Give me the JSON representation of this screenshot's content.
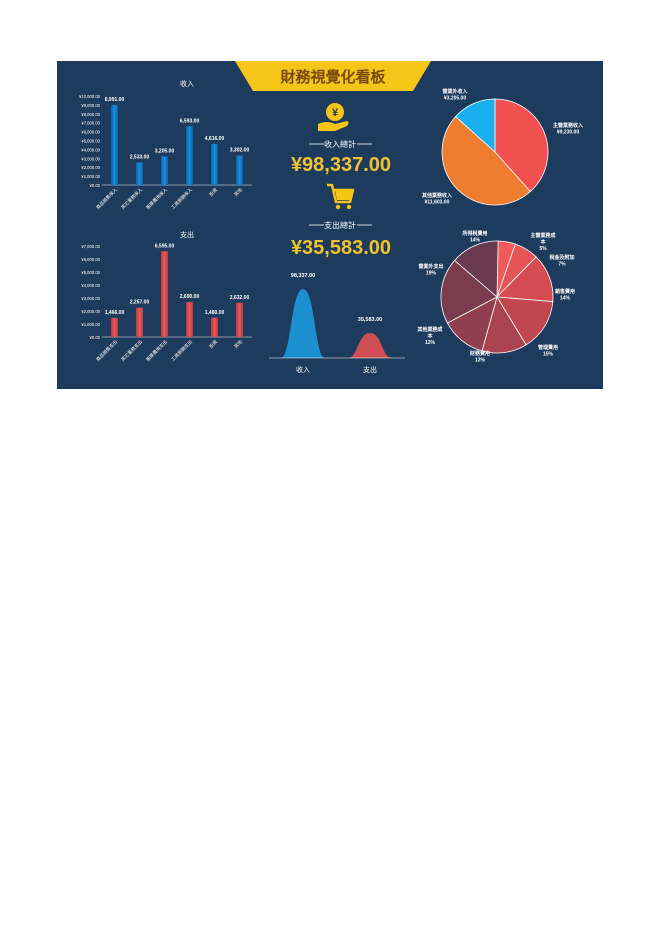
{
  "dashboard": {
    "title": "財務視覺化看板",
    "income_total_label": "收入總計",
    "income_total": "¥98,337.00",
    "expense_total_label": "支出總計",
    "expense_total": "¥35,583.00",
    "income_icon": "yen-hand-icon",
    "expense_icon": "shopping-cart-icon"
  },
  "colors": {
    "background": "#1d3b5c",
    "title_gold": "#f5c518",
    "total_gold": "#f2c22c",
    "income_bar": "#1a8fe0",
    "expense_bar": "#e8585c"
  },
  "chart_data": [
    {
      "id": "income-bar",
      "type": "bar",
      "title": "收入",
      "categories": [
        "商品銷售收入",
        "其它業務收入",
        "服務費用收入",
        "工資薪酬收入",
        "投資",
        "其他"
      ],
      "values": [
        8991,
        2533,
        3205,
        6593,
        4616,
        3302
      ],
      "value_labels": [
        "8,991.00",
        "2,533.00",
        "3,205.00",
        "6,593.00",
        "4,616.00",
        "3,302.00"
      ],
      "y_ticks": [
        "¥0.00",
        "¥1,000.00",
        "¥2,000.00",
        "¥3,000.00",
        "¥4,000.00",
        "¥5,000.00",
        "¥6,000.00",
        "¥7,000.00",
        "¥8,000.00",
        "¥9,000.00",
        "¥10,000.00"
      ],
      "ylim": [
        0,
        10000
      ]
    },
    {
      "id": "expense-bar",
      "type": "bar",
      "title": "支出",
      "categories": [
        "商品銷售支出",
        "其它業務支出",
        "服務費用支出",
        "工資薪酬支出",
        "投資",
        "其他"
      ],
      "values": [
        1466,
        2257,
        6595,
        2690,
        1480,
        2632
      ],
      "value_labels": [
        "1,466.00",
        "2,257.00",
        "6,595.00",
        "2,690.00",
        "1,480.00",
        "2,632.00"
      ],
      "y_ticks": [
        "¥0.00",
        "¥1,000.00",
        "¥2,000.00",
        "¥3,000.00",
        "¥4,000.00",
        "¥5,000.00",
        "¥6,000.00",
        "¥7,000.00"
      ],
      "ylim": [
        0,
        7000
      ]
    },
    {
      "id": "income-pie",
      "type": "pie",
      "slices": [
        {
          "label": "主營業務收入",
          "value": 9230,
          "value_label": "¥9,230.00",
          "color": "#f05050"
        },
        {
          "label": "其他業務收入",
          "value": 11603,
          "value_label": "¥11,603.00",
          "color": "#ef7d30"
        },
        {
          "label": "營業外收入",
          "value": 3205,
          "value_label": "¥3,205.00",
          "color": "#1ab0f0"
        }
      ]
    },
    {
      "id": "total-compare",
      "type": "area",
      "categories": [
        "收入",
        "支出"
      ],
      "values": [
        98337,
        35583
      ],
      "value_labels": [
        "98,337.00",
        "35,583.00"
      ],
      "colors": [
        "#1b8fd0",
        "#cf4f55"
      ]
    },
    {
      "id": "expense-pie",
      "type": "pie",
      "slices": [
        {
          "label": "主營業務成本",
          "percent_label": "5%",
          "value": 5,
          "color": "#f05a5a"
        },
        {
          "label": "稅金及附加",
          "percent_label": "7%",
          "value": 7,
          "color": "#e65457"
        },
        {
          "label": "銷售費用",
          "percent_label": "14%",
          "value": 14,
          "color": "#d44b52"
        },
        {
          "label": "管理費用",
          "percent_label": "15%",
          "value": 15,
          "color": "#c04650"
        },
        {
          "label": "財務費用",
          "percent_label": "13%",
          "value": 13,
          "color": "#a8434f"
        },
        {
          "label": "其他業務成本",
          "percent_label": "13%",
          "value": 13,
          "color": "#8f3f4e"
        },
        {
          "label": "營業外支出",
          "percent_label": "19%",
          "value": 19,
          "color": "#7a3c4e"
        },
        {
          "label": "所得稅費用",
          "percent_label": "14%",
          "value": 14,
          "color": "#6a3a50"
        }
      ]
    }
  ]
}
